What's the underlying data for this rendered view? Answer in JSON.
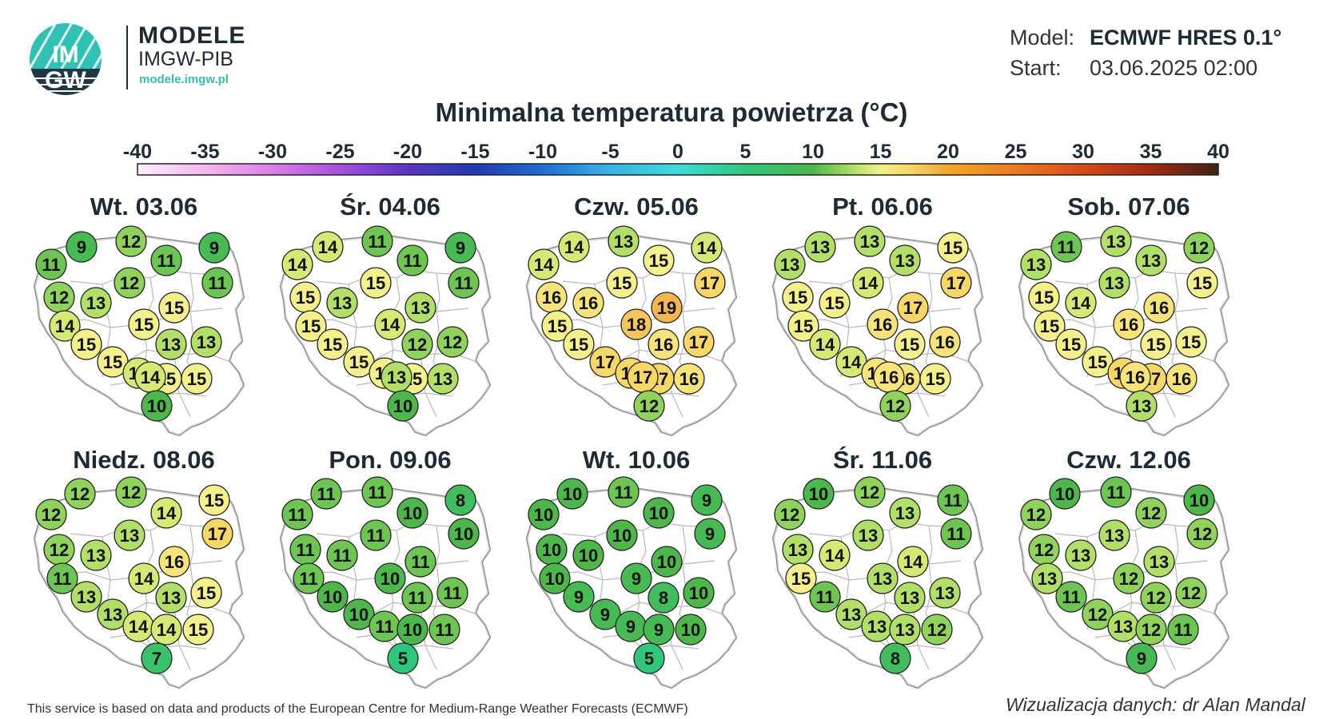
{
  "branding": {
    "logo_top": "IM",
    "logo_bottom": "GW",
    "title": "MODELE",
    "subtitle": "IMGW-PIB",
    "url": "modele.imgw.pl"
  },
  "meta": {
    "model_label": "Model:",
    "model_value": "ECMWF HRES 0.1°",
    "start_label": "Start:",
    "start_value": "03.06.2025 02:00"
  },
  "title": "Minimalna temperatura powietrza (°C)",
  "scale": {
    "ticks": [
      "-40",
      "-35",
      "-30",
      "-25",
      "-20",
      "-15",
      "-10",
      "-5",
      "0",
      "5",
      "10",
      "15",
      "20",
      "25",
      "30",
      "35",
      "40"
    ],
    "min": -40,
    "max": 40,
    "stops": [
      {
        "t": -40,
        "c": "#fdeefb"
      },
      {
        "t": -35,
        "c": "#f4b7ee"
      },
      {
        "t": -30,
        "c": "#dd7de8"
      },
      {
        "t": -25,
        "c": "#a64fe0"
      },
      {
        "t": -20,
        "c": "#5a35c8"
      },
      {
        "t": -15,
        "c": "#1f3ab2"
      },
      {
        "t": -10,
        "c": "#1f6ed6"
      },
      {
        "t": -5,
        "c": "#36b4ea"
      },
      {
        "t": 0,
        "c": "#3ddcd8"
      },
      {
        "t": 5,
        "c": "#2ec87c"
      },
      {
        "t": 10,
        "c": "#4cb84a"
      },
      {
        "t": 12,
        "c": "#8fd35a"
      },
      {
        "t": 14,
        "c": "#d4ea72"
      },
      {
        "t": 15,
        "c": "#f4f08a"
      },
      {
        "t": 17,
        "c": "#f8d865"
      },
      {
        "t": 19,
        "c": "#f3b64a"
      },
      {
        "t": 20,
        "c": "#f6a623"
      },
      {
        "t": 25,
        "c": "#ee7a1d"
      },
      {
        "t": 30,
        "c": "#d84a1a"
      },
      {
        "t": 35,
        "c": "#a42a12"
      },
      {
        "t": 40,
        "c": "#3d2415"
      }
    ]
  },
  "days": [
    {
      "label": "Wt. 03.06",
      "values": [
        9,
        12,
        11,
        9,
        11,
        11,
        12,
        12,
        13,
        15,
        14,
        15,
        15,
        13,
        13,
        15,
        14,
        15,
        15,
        14,
        10
      ]
    },
    {
      "label": "Śr. 04.06",
      "values": [
        14,
        11,
        11,
        9,
        14,
        11,
        15,
        15,
        13,
        13,
        15,
        14,
        15,
        12,
        12,
        15,
        15,
        15,
        13,
        13,
        10
      ]
    },
    {
      "label": "Czw. 05.06",
      "values": [
        14,
        13,
        15,
        14,
        14,
        17,
        15,
        16,
        16,
        19,
        15,
        18,
        15,
        16,
        17,
        17,
        17,
        17,
        16,
        17,
        12
      ]
    },
    {
      "label": "Pt. 06.06",
      "values": [
        13,
        13,
        13,
        15,
        13,
        17,
        14,
        15,
        15,
        17,
        15,
        16,
        14,
        15,
        16,
        14,
        16,
        16,
        15,
        16,
        12
      ]
    },
    {
      "label": "Sob. 07.06",
      "values": [
        11,
        13,
        13,
        12,
        13,
        15,
        13,
        15,
        14,
        16,
        15,
        16,
        15,
        15,
        15,
        15,
        17,
        17,
        16,
        16,
        13
      ]
    },
    {
      "label": "Niedz. 08.06",
      "values": [
        12,
        12,
        14,
        15,
        12,
        17,
        12,
        13,
        13,
        16,
        11,
        14,
        13,
        13,
        15,
        13,
        14,
        14,
        15,
        7
      ]
    },
    {
      "label": "Pon. 09.06",
      "values": [
        11,
        11,
        10,
        8,
        11,
        10,
        11,
        11,
        11,
        11,
        11,
        10,
        10,
        11,
        11,
        10,
        11,
        10,
        11,
        5
      ]
    },
    {
      "label": "Wt. 10.06",
      "values": [
        10,
        11,
        10,
        9,
        10,
        9,
        10,
        10,
        10,
        10,
        10,
        9,
        9,
        8,
        10,
        9,
        9,
        9,
        10,
        5
      ]
    },
    {
      "label": "Śr. 11.06",
      "values": [
        10,
        12,
        13,
        11,
        12,
        11,
        13,
        14,
        13,
        14,
        15,
        13,
        11,
        13,
        13,
        13,
        13,
        13,
        12,
        8
      ]
    },
    {
      "label": "Czw. 12.06",
      "values": [
        10,
        11,
        12,
        10,
        12,
        12,
        12,
        13,
        13,
        13,
        13,
        12,
        11,
        12,
        12,
        12,
        13,
        12,
        11,
        9
      ]
    }
  ],
  "footer": {
    "left": "This service is based on data and products of the European Centre for Medium-Range Weather Forecasts (ECMWF)",
    "right": "Wizualizacja danych: dr Alan Mandal"
  }
}
